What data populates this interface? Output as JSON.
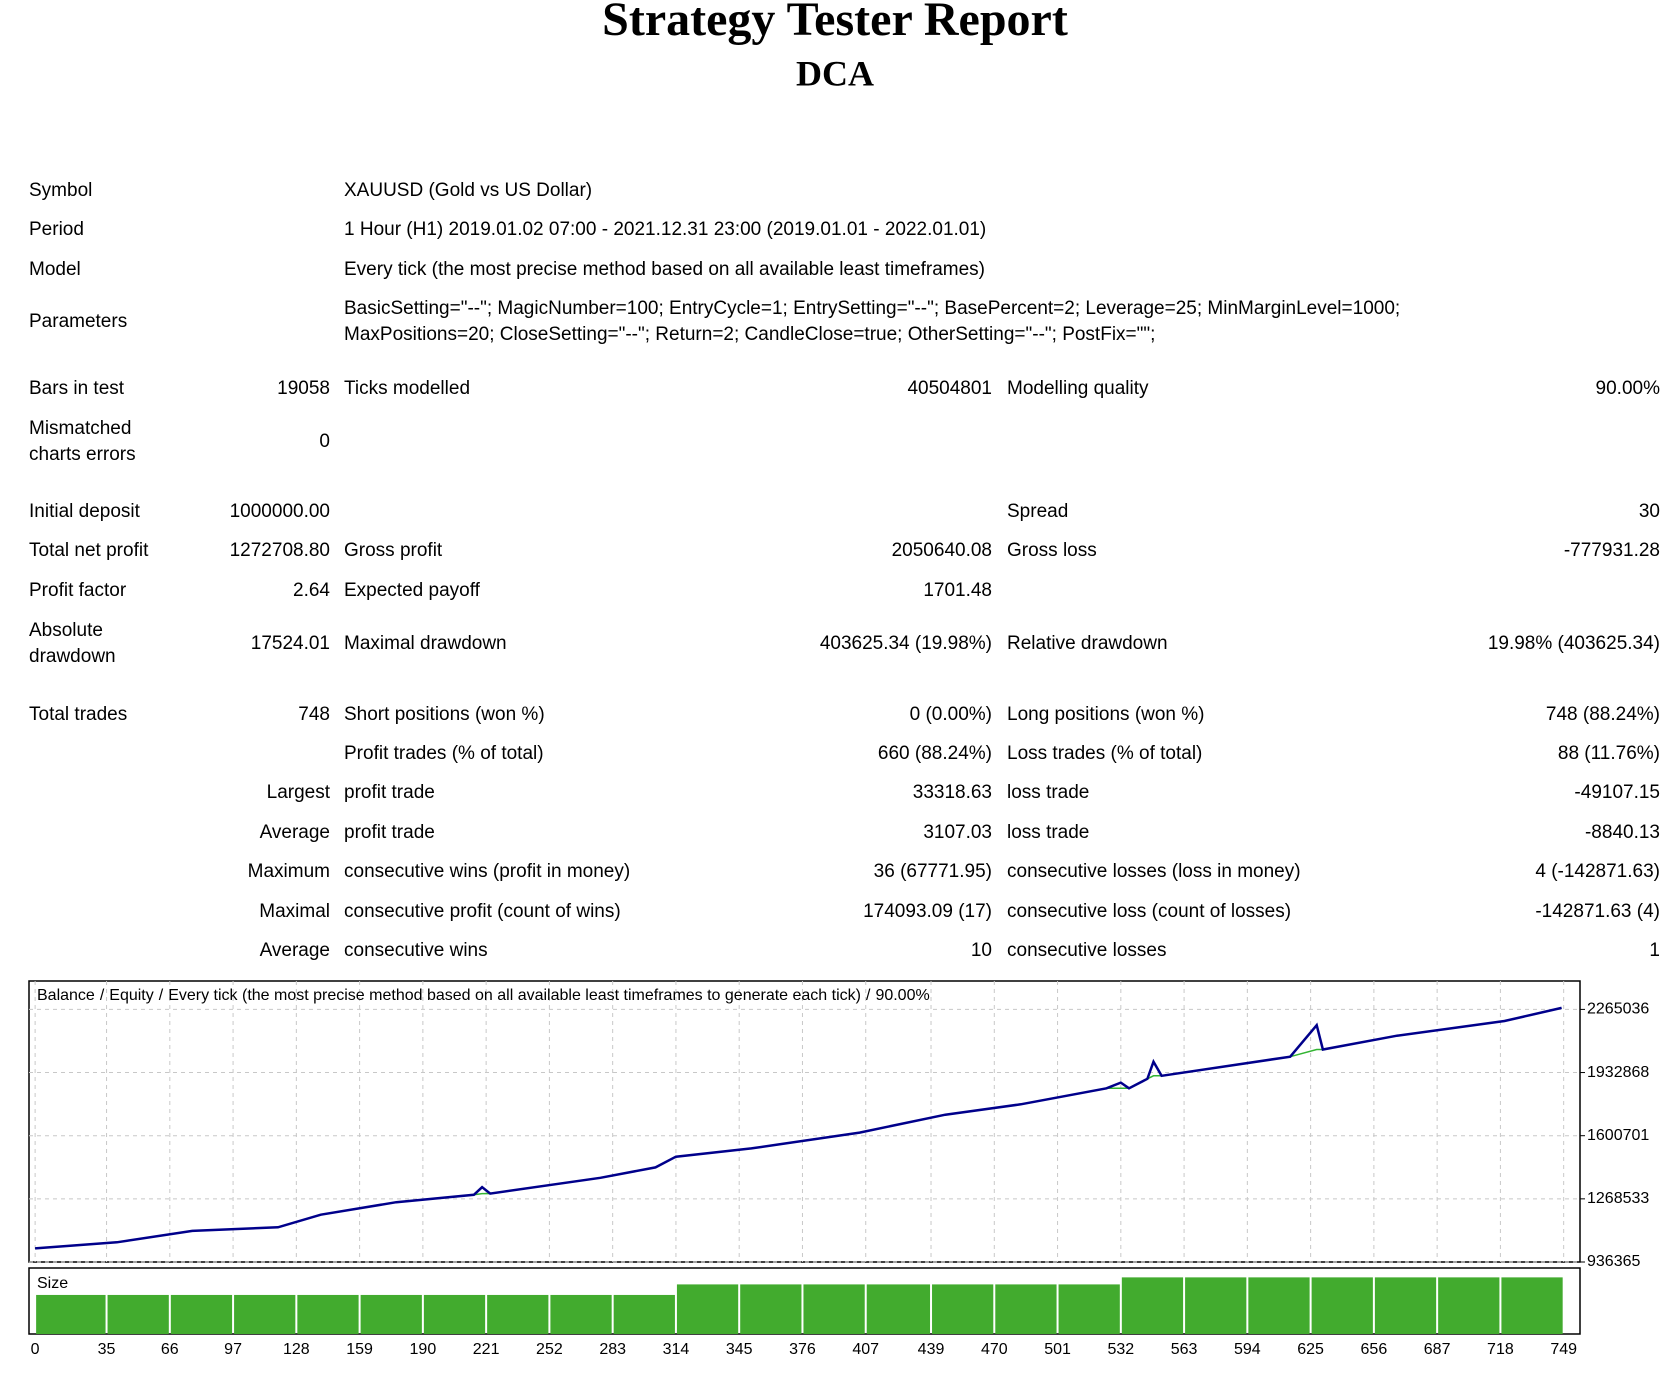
{
  "header": {
    "title": "Strategy Tester Report",
    "subtitle": "DCA"
  },
  "rows": [
    {
      "c1": "Symbol",
      "c3": "XAUUSD (Gold vs US Dollar)"
    },
    {
      "c1": "Period",
      "c3": "1 Hour (H1) 2019.01.02 07:00 - 2021.12.31 23:00 (2019.01.01 - 2022.01.01)"
    },
    {
      "c1": "Model",
      "c3": "Every tick (the most precise method based on all available least timeframes)"
    },
    {
      "c1": "Parameters",
      "c3": [
        "BasicSetting=\"--\"; MagicNumber=100; EntryCycle=1; EntrySetting=\"--\"; BasePercent=2; Leverage=25; MinMarginLevel=1000;",
        "MaxPositions=20; CloseSetting=\"--\"; Return=2; CandleClose=true; OtherSetting=\"--\"; PostFix=\"\";"
      ]
    },
    {
      "c1": "Bars in test",
      "c2": "19058",
      "c3": "Ticks modelled",
      "c4": "40504801",
      "c5": "Modelling quality",
      "c6": "90.00%"
    },
    {
      "c1": [
        "Mismatched",
        "charts errors"
      ],
      "c2": "0"
    },
    {
      "c1": "Initial deposit",
      "c2": "1000000.00",
      "c5": "Spread",
      "c6": "30"
    },
    {
      "c1": "Total net profit",
      "c2": "1272708.80",
      "c3": "Gross profit",
      "c4": "2050640.08",
      "c5": "Gross loss",
      "c6": "-777931.28"
    },
    {
      "c1": "Profit factor",
      "c2": "2.64",
      "c3": "Expected payoff",
      "c4": "1701.48"
    },
    {
      "c1": [
        "Absolute",
        "drawdown"
      ],
      "c2": "17524.01",
      "c3": "Maximal drawdown",
      "c4": "403625.34 (19.98%)",
      "c5": "Relative drawdown",
      "c6": "19.98% (403625.34)"
    },
    {
      "c1": "Total trades",
      "c2": "748",
      "c3": "Short positions (won %)",
      "c4": "0 (0.00%)",
      "c5": "Long positions (won %)",
      "c6": "748 (88.24%)"
    },
    {
      "c3": "Profit trades (% of total)",
      "c4": "660 (88.24%)",
      "c5": "Loss trades (% of total)",
      "c6": "88 (11.76%)"
    },
    {
      "c2": "Largest",
      "c3": "profit trade",
      "c4": "33318.63",
      "c5": "loss trade",
      "c6": "-49107.15"
    },
    {
      "c2": "Average",
      "c3": "profit trade",
      "c4": "3107.03",
      "c5": "loss trade",
      "c6": "-8840.13"
    },
    {
      "c2": "Maximum",
      "c3": "consecutive wins (profit in money)",
      "c4": "36 (67771.95)",
      "c5": "consecutive losses (loss in money)",
      "c6": "4 (-142871.63)"
    },
    {
      "c2": "Maximal",
      "c3": "consecutive profit (count of wins)",
      "c4": "174093.09 (17)",
      "c5": "consecutive loss (count of losses)",
      "c6": "-142871.63 (4)"
    },
    {
      "c2": "Average",
      "c3": "consecutive wins",
      "c4": "10",
      "c5": "consecutive losses",
      "c6": "1"
    }
  ],
  "chart": {
    "legend": {
      "separator": "/",
      "description": "Every tick (the most precise method based on all available least timeframes to generate each tick)",
      "quality": "90.00%"
    },
    "xlim": [
      -3,
      757
    ],
    "ylim": [
      936365,
      2414400
    ],
    "yticks": [
      936365,
      1268533,
      1600701,
      1932868,
      2265036
    ],
    "xticks": [
      0,
      35,
      66,
      97,
      128,
      159,
      190,
      221,
      252,
      283,
      314,
      345,
      376,
      407,
      439,
      470,
      501,
      532,
      563,
      594,
      625,
      656,
      687,
      718,
      749
    ],
    "grid": true,
    "series": [
      {
        "name": "Balance",
        "color": "#00008b",
        "x": [
          0,
          40,
          77,
          119,
          140,
          177,
          215,
          219,
          223,
          277,
          304,
          314,
          351,
          404,
          446,
          483,
          525,
          532,
          536,
          545,
          548,
          552,
          615,
          628,
          631,
          667,
          720,
          748
        ],
        "values": [
          1008000,
          1040000,
          1100000,
          1119000,
          1185000,
          1251000,
          1290000,
          1330000,
          1296000,
          1379000,
          1434000,
          1490000,
          1534000,
          1617000,
          1711000,
          1766000,
          1850000,
          1880000,
          1850000,
          1900000,
          1990000,
          1916000,
          2016000,
          2182000,
          2054000,
          2126000,
          2204000,
          2272708
        ]
      },
      {
        "name": "Equity",
        "color": "#32b432",
        "x": [
          0,
          40,
          77,
          119,
          140,
          177,
          215,
          219,
          223,
          277,
          304,
          314,
          351,
          404,
          446,
          483,
          525,
          532,
          536,
          545,
          548,
          552,
          615,
          628,
          631,
          667,
          720,
          748
        ],
        "values": [
          1008000,
          1040000,
          1100000,
          1119000,
          1185000,
          1251000,
          1290000,
          1296000,
          1296000,
          1379000,
          1434000,
          1490000,
          1534000,
          1617000,
          1711000,
          1766000,
          1850000,
          1850000,
          1850000,
          1900000,
          1916000,
          1916000,
          2016000,
          2054000,
          2054000,
          2126000,
          2204000,
          2272708
        ]
      }
    ],
    "size": {
      "label": "Size",
      "color": "#42ab2e",
      "ylim": [
        0,
        1.69
      ],
      "edges": [
        0,
        35,
        66,
        97,
        128,
        159,
        190,
        221,
        252,
        283,
        314,
        345,
        376,
        407,
        439,
        470,
        501,
        532,
        563,
        594,
        625,
        656,
        687,
        718,
        749
      ],
      "values": [
        1,
        1,
        1,
        1,
        1,
        1,
        1,
        1,
        1,
        1,
        1.27,
        1.27,
        1.27,
        1.27,
        1.27,
        1.27,
        1.27,
        1.45,
        1.45,
        1.45,
        1.45,
        1.45,
        1.45,
        1.45
      ]
    }
  }
}
